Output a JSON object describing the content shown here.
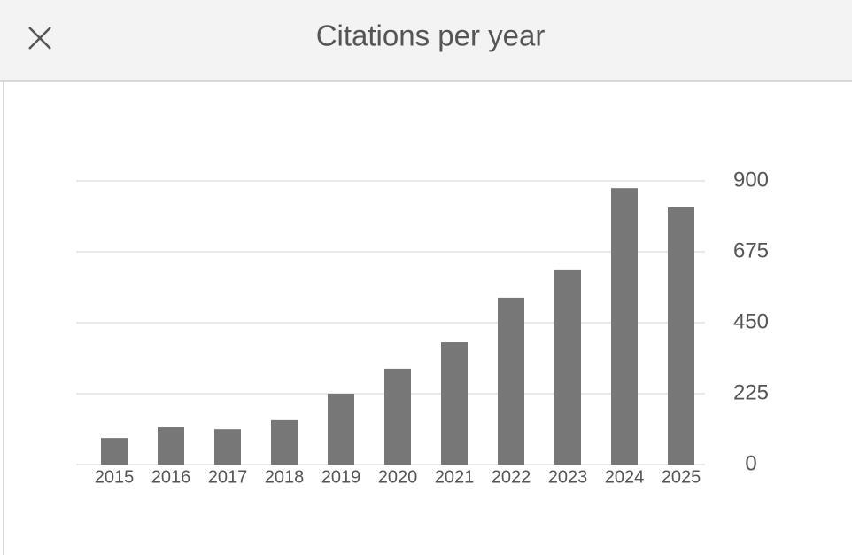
{
  "chart_data": {
    "type": "bar",
    "title": "Citations per year",
    "categories": [
      "2015",
      "2016",
      "2017",
      "2018",
      "2019",
      "2020",
      "2021",
      "2022",
      "2023",
      "2024",
      "2025"
    ],
    "values": [
      84,
      118,
      112,
      141,
      225,
      304,
      388,
      529,
      619,
      877,
      816
    ],
    "color": "#777777",
    "ylim": [
      0,
      900
    ],
    "yticks": [
      0,
      225,
      450,
      675,
      900
    ],
    "grid": true
  }
}
